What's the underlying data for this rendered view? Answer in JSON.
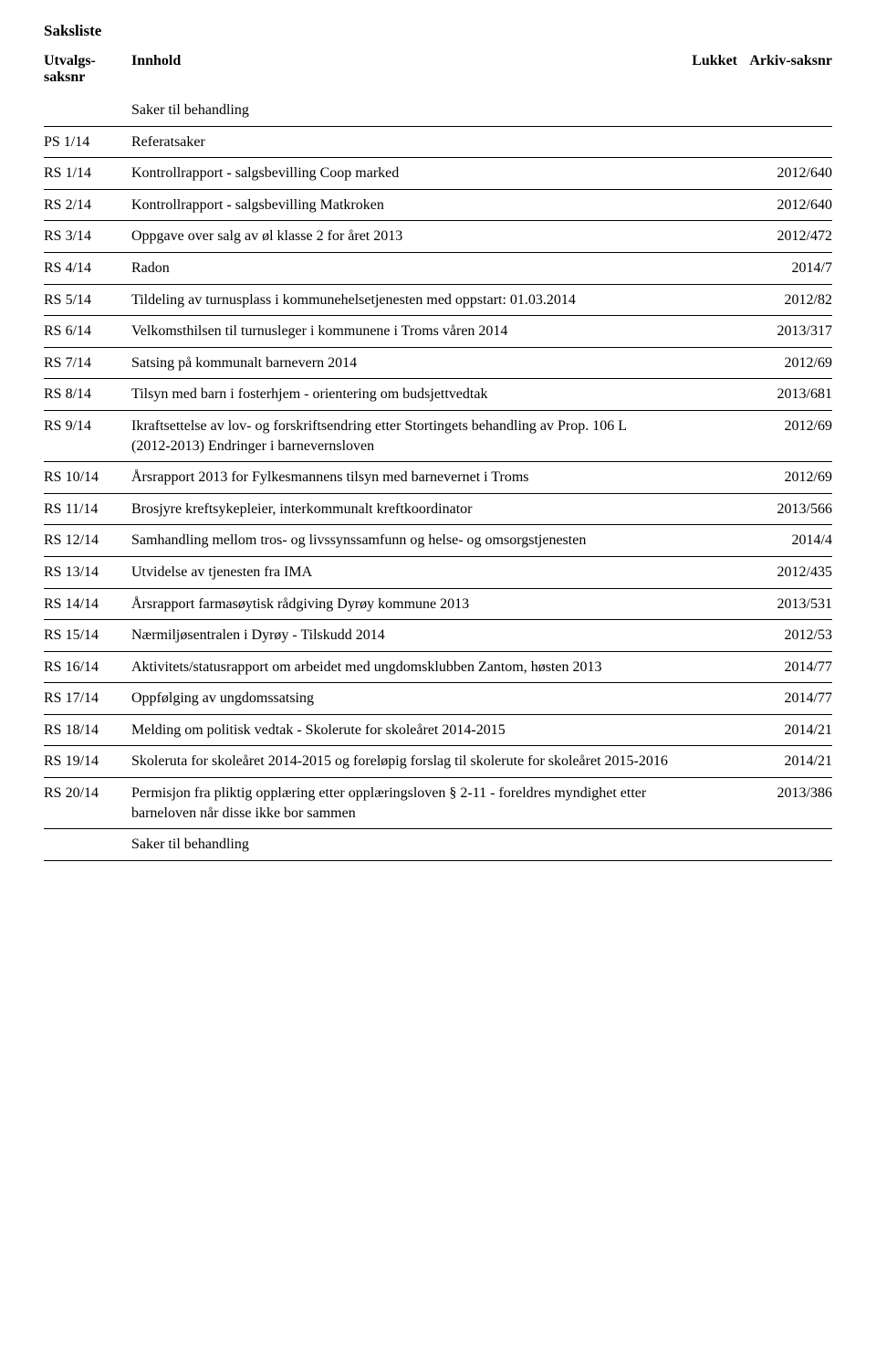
{
  "title": "Saksliste",
  "headers": {
    "col1": "Utvalgs-saksnr",
    "col2": "Innhold",
    "col3": "Lukket",
    "col4": "Arkiv-saksnr"
  },
  "section_label": "Saker til behandling",
  "rows": [
    {
      "nr": "PS 1/14",
      "innhold": "Referatsaker",
      "arkiv": ""
    },
    {
      "nr": "RS 1/14",
      "innhold": "Kontrollrapport - salgsbevilling Coop marked",
      "arkiv": "2012/640"
    },
    {
      "nr": "RS 2/14",
      "innhold": "Kontrollrapport - salgsbevilling Matkroken",
      "arkiv": "2012/640"
    },
    {
      "nr": "RS 3/14",
      "innhold": "Oppgave over salg av øl klasse 2 for året 2013",
      "arkiv": "2012/472"
    },
    {
      "nr": "RS 4/14",
      "innhold": "Radon",
      "arkiv": "2014/7"
    },
    {
      "nr": "RS 5/14",
      "innhold": "Tildeling av turnusplass i kommunehelsetjenesten med oppstart: 01.03.2014",
      "arkiv": "2012/82"
    },
    {
      "nr": "RS 6/14",
      "innhold": "Velkomsthilsen til turnusleger i kommunene i Troms våren 2014",
      "arkiv": "2013/317"
    },
    {
      "nr": "RS 7/14",
      "innhold": "Satsing på kommunalt barnevern 2014",
      "arkiv": "2012/69"
    },
    {
      "nr": "RS 8/14",
      "innhold": "Tilsyn med barn i fosterhjem - orientering om budsjettvedtak",
      "arkiv": "2013/681"
    },
    {
      "nr": "RS 9/14",
      "innhold": "Ikraftsettelse av lov- og forskriftsendring etter Stortingets behandling av Prop. 106 L (2012-2013) Endringer i barnevernsloven",
      "arkiv": "2012/69"
    },
    {
      "nr": "RS 10/14",
      "innhold": "Årsrapport 2013 for Fylkesmannens tilsyn med barnevernet i Troms",
      "arkiv": "2012/69"
    },
    {
      "nr": "RS 11/14",
      "innhold": "Brosjyre kreftsykepleier, interkommunalt kreftkoordinator",
      "arkiv": "2013/566"
    },
    {
      "nr": "RS 12/14",
      "innhold": "Samhandling mellom tros- og livssynssamfunn og helse- og omsorgstjenesten",
      "arkiv": "2014/4"
    },
    {
      "nr": "RS 13/14",
      "innhold": "Utvidelse av tjenesten fra IMA",
      "arkiv": "2012/435"
    },
    {
      "nr": "RS 14/14",
      "innhold": "Årsrapport farmasøytisk rådgiving Dyrøy kommune 2013",
      "arkiv": "2013/531"
    },
    {
      "nr": "RS 15/14",
      "innhold": "Nærmiljøsentralen i Dyrøy - Tilskudd 2014",
      "arkiv": "2012/53"
    },
    {
      "nr": "RS 16/14",
      "innhold": "Aktivitets/statusrapport om arbeidet med ungdomsklubben Zantom, høsten 2013",
      "arkiv": "2014/77"
    },
    {
      "nr": "RS 17/14",
      "innhold": "Oppfølging av ungdomssatsing",
      "arkiv": "2014/77"
    },
    {
      "nr": "RS 18/14",
      "innhold": "Melding om politisk vedtak - Skolerute for skoleåret 2014-2015",
      "arkiv": "2014/21"
    },
    {
      "nr": "RS 19/14",
      "innhold": "Skoleruta for skoleåret 2014-2015 og foreløpig forslag til skolerute for skoleåret 2015-2016",
      "arkiv": "2014/21"
    },
    {
      "nr": "RS 20/14",
      "innhold": "Permisjon fra pliktig opplæring etter opplæringsloven § 2-11 - foreldres myndighet etter barneloven når disse ikke bor sammen",
      "arkiv": "2013/386"
    }
  ],
  "footer_section": "Saker til behandling"
}
